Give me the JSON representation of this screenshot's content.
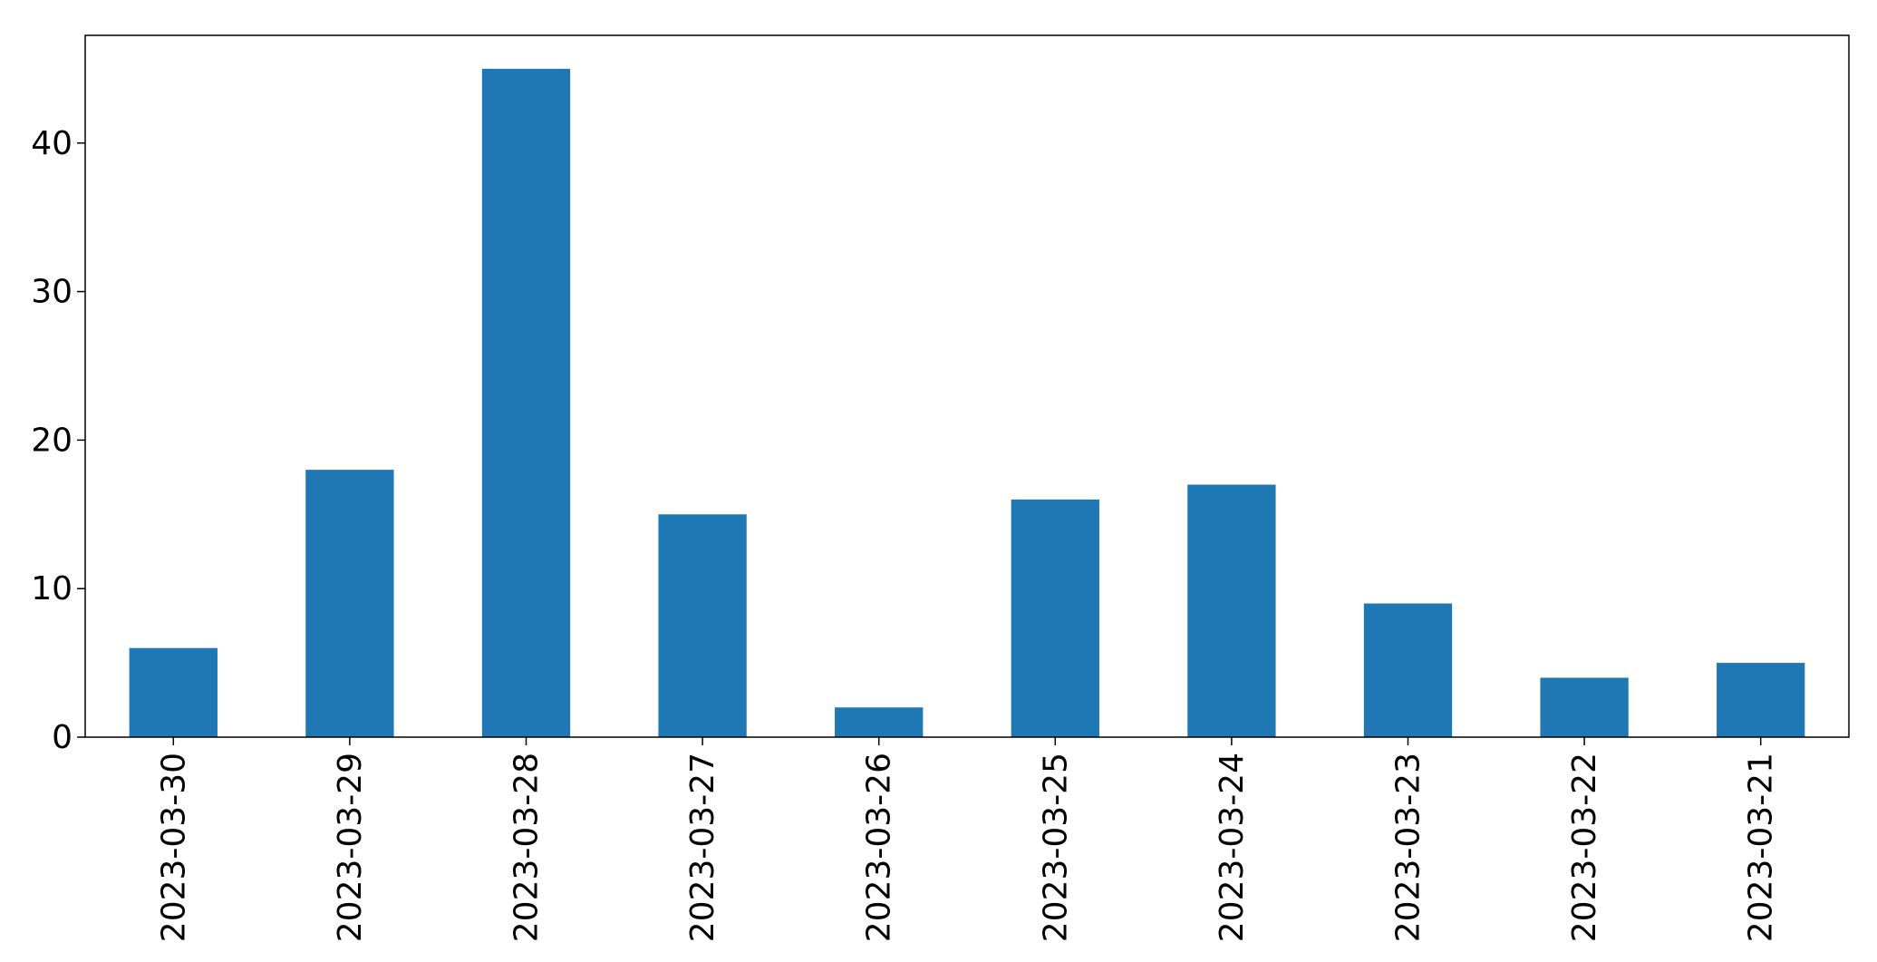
{
  "chart_data": {
    "type": "bar",
    "title": "",
    "xlabel": "",
    "ylabel": "",
    "categories": [
      "2023-03-30",
      "2023-03-29",
      "2023-03-28",
      "2023-03-27",
      "2023-03-26",
      "2023-03-25",
      "2023-03-24",
      "2023-03-23",
      "2023-03-22",
      "2023-03-21"
    ],
    "values": [
      6,
      18,
      45,
      15,
      2,
      16,
      17,
      9,
      4,
      5
    ],
    "ylim": [
      0,
      47.25
    ],
    "yticks": [
      0,
      10,
      20,
      30,
      40
    ],
    "bar_color": "#1f77b4",
    "grid": false,
    "legend": "none",
    "x_tick_rotation": "vertical"
  }
}
